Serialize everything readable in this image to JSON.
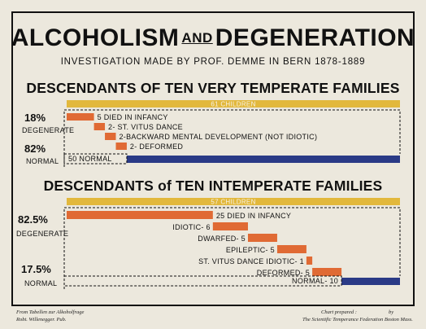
{
  "header": {
    "title_a": "ALCOHOLISM",
    "title_and": "AND",
    "title_b": "DEGENERATION",
    "subtitle": "INVESTIGATION MADE BY PROF. DEMME IN BERN 1878-1889"
  },
  "colors": {
    "yellow": "#e2b83c",
    "orange": "#e06a34",
    "blue": "#2a3a86",
    "ink": "#111111",
    "paper": "#ece8dd"
  },
  "chart_data": [
    {
      "type": "bar",
      "title": "DESCENDANTS OF TEN VERY TEMPERATE FAMILIES",
      "total": {
        "label": "61 CHILDREN",
        "value": 61
      },
      "groups": {
        "degenerate": {
          "percent": "18%",
          "label": "DEGENERATE"
        },
        "normal": {
          "percent": "82%",
          "label": "NORMAL"
        }
      },
      "segments": [
        {
          "label": "5 DIED IN INFANCY",
          "value": 5,
          "category": "degenerate"
        },
        {
          "label": "2- ST. VITUS DANCE",
          "value": 2,
          "category": "degenerate"
        },
        {
          "label": "2-BACKWARD MENTAL DEVELOPMENT  (NOT IDIOTIC)",
          "value": 2,
          "category": "degenerate"
        },
        {
          "label": "2- DEFORMED",
          "value": 2,
          "category": "degenerate"
        },
        {
          "label": "50 NORMAL",
          "value": 50,
          "category": "normal"
        }
      ]
    },
    {
      "type": "bar",
      "title": "DESCENDANTS of TEN INTEMPERATE FAMILIES",
      "total": {
        "label": "57 CHILDREN",
        "value": 57
      },
      "groups": {
        "degenerate": {
          "percent": "82.5%",
          "label": "DEGENERATE"
        },
        "normal": {
          "percent": "17.5%",
          "label": "NORMAL"
        }
      },
      "segments": [
        {
          "label": "25 DIED IN INFANCY",
          "value": 25,
          "category": "degenerate"
        },
        {
          "label": "IDIOTIC- 6",
          "value": 6,
          "category": "degenerate"
        },
        {
          "label": "DWARFED- 5",
          "value": 5,
          "category": "degenerate"
        },
        {
          "label": "EPILEPTIC- 5",
          "value": 5,
          "category": "degenerate"
        },
        {
          "label": "ST. VITUS DANCE IDIOTIC- 1",
          "value": 1,
          "category": "degenerate"
        },
        {
          "label": "DEFORMED- 5",
          "value": 5,
          "category": "degenerate"
        },
        {
          "label": "NORMAL- 10",
          "value": 10,
          "category": "normal"
        }
      ]
    }
  ],
  "footer": {
    "left_line1": "From Tabellen zur Alkoholfrage",
    "left_line2": "Robt. Willenegger. Pub.",
    "right_line1": "Chart prepared :",
    "right_line1b": "by",
    "right_line2": "The Scientific Temperance Federation Boston Mass."
  }
}
